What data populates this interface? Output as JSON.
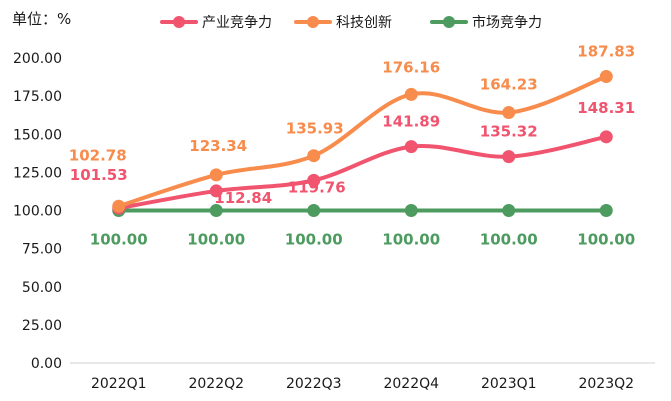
{
  "chart_data": {
    "type": "line",
    "unit_label": "单位：%",
    "categories": [
      "2022Q1",
      "2022Q2",
      "2022Q3",
      "2022Q4",
      "2023Q1",
      "2023Q2"
    ],
    "ylim": [
      0,
      200
    ],
    "yticks": [
      "0.00",
      "25.00",
      "50.00",
      "75.00",
      "100.00",
      "125.00",
      "150.00",
      "175.00",
      "200.00"
    ],
    "ytick_values": [
      0,
      25,
      50,
      75,
      100,
      125,
      150,
      175,
      200
    ],
    "grid": false,
    "legend_position": "top",
    "series": [
      {
        "name": "产业竞争力",
        "color": "#f0546e",
        "values": [
          101.53,
          112.84,
          119.76,
          141.89,
          135.32,
          148.31
        ],
        "labels": [
          "101.53",
          "112.84",
          "119.76",
          "141.89",
          "135.32",
          "148.31"
        ]
      },
      {
        "name": "科技创新",
        "color": "#f78c4c",
        "values": [
          102.78,
          123.34,
          135.93,
          176.16,
          164.23,
          187.83
        ],
        "labels": [
          "102.78",
          "123.34",
          "135.93",
          "176.16",
          "164.23",
          "187.83"
        ]
      },
      {
        "name": "市场竞争力",
        "color": "#4d9b5f",
        "values": [
          100.0,
          100.0,
          100.0,
          100.0,
          100.0,
          100.0
        ],
        "labels": [
          "100.00",
          "100.00",
          "100.00",
          "100.00",
          "100.00",
          "100.00"
        ]
      }
    ]
  }
}
